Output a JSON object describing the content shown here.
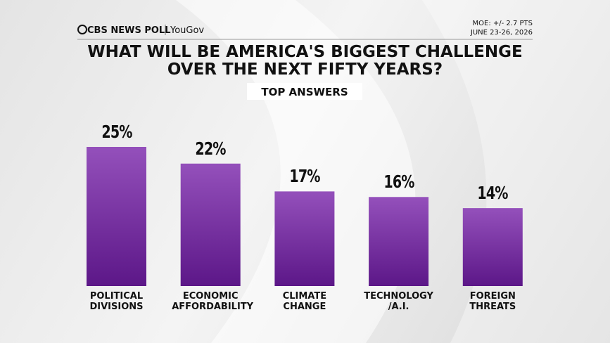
{
  "header": {
    "brand": "CBS NEWS POLL",
    "partner": "YouGov",
    "moe": "MOE: +/- 2.7 PTS",
    "dates": "JUNE 23-26, 2026"
  },
  "chart_data": {
    "type": "bar",
    "title": "WHAT WILL BE AMERICA'S BIGGEST CHALLENGE OVER THE NEXT FIFTY YEARS?",
    "subtitle": "TOP ANSWERS",
    "categories": [
      "POLITICAL DIVISIONS",
      "ECONOMIC AFFORDABILITY",
      "CLIMATE CHANGE",
      "TECHNOLOGY /A.I.",
      "FOREIGN THREATS"
    ],
    "values": [
      25,
      22,
      17,
      16,
      14
    ],
    "value_labels": [
      "25%",
      "22%",
      "17%",
      "16%",
      "14%"
    ],
    "color": "#7a33a3"
  }
}
